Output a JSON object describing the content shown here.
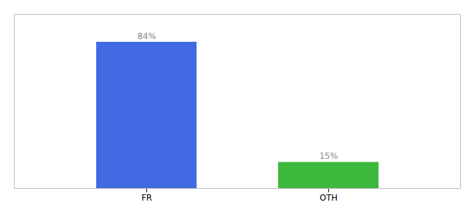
{
  "chart_data": {
    "type": "bar",
    "categories": [
      "FR",
      "OTH"
    ],
    "values": [
      84,
      15
    ],
    "value_labels": [
      "84%",
      "15%"
    ],
    "colors": [
      "#4169e1",
      "#3cb83c"
    ],
    "ylim": [
      0,
      100
    ],
    "data_labels": true,
    "tick_labels": "x"
  }
}
